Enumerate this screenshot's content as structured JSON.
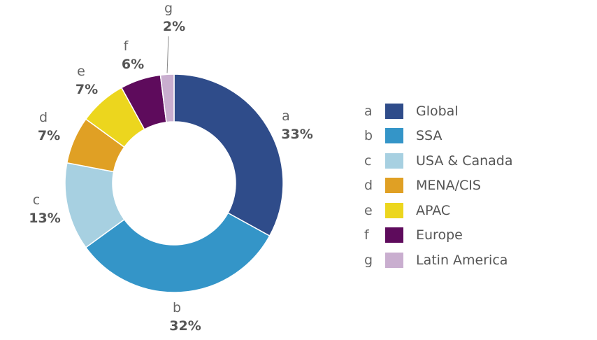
{
  "chart_data": {
    "type": "pie",
    "variant": "donut",
    "slices": [
      {
        "letter": "a",
        "label": "Global",
        "value": 33,
        "pct_text": "33%",
        "color": "#2f4c8a"
      },
      {
        "letter": "b",
        "label": "SSA",
        "value": 32,
        "pct_text": "32%",
        "color": "#3495c8"
      },
      {
        "letter": "c",
        "label": "USA & Canada",
        "value": 13,
        "pct_text": "13%",
        "color": "#a7d0e1"
      },
      {
        "letter": "d",
        "label": "MENA/CIS",
        "value": 7,
        "pct_text": "7%",
        "color": "#e0a024"
      },
      {
        "letter": "e",
        "label": "APAC",
        "value": 7,
        "pct_text": "7%",
        "color": "#ecd61e"
      },
      {
        "letter": "f",
        "label": "Europe",
        "value": 6,
        "pct_text": "6%",
        "color": "#5e0b5c"
      },
      {
        "letter": "g",
        "label": "Latin America",
        "value": 2,
        "pct_text": "2%",
        "color": "#c9aecf"
      }
    ],
    "legend_position": "right"
  }
}
